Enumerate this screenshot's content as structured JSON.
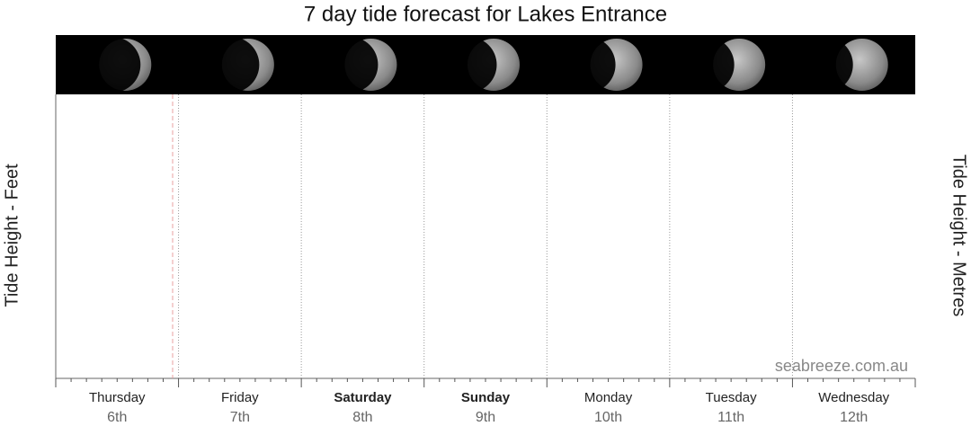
{
  "chart_data": {
    "type": "tide",
    "title": "7 day tide forecast for Lakes Entrance",
    "y_label_left": "Tide Height - Feet",
    "y_label_right": "Tide Height - Metres",
    "watermark": "seabreeze.com.au",
    "days": [
      {
        "day": "Thursday",
        "date": "6th",
        "bold": false
      },
      {
        "day": "Friday",
        "date": "7th",
        "bold": false
      },
      {
        "day": "Saturday",
        "date": "8th",
        "bold": true
      },
      {
        "day": "Sunday",
        "date": "9th",
        "bold": true
      },
      {
        "day": "Monday",
        "date": "10th",
        "bold": false
      },
      {
        "day": "Tuesday",
        "date": "11th",
        "bold": false
      },
      {
        "day": "Wednesday",
        "date": "12th",
        "bold": false
      }
    ]
  }
}
